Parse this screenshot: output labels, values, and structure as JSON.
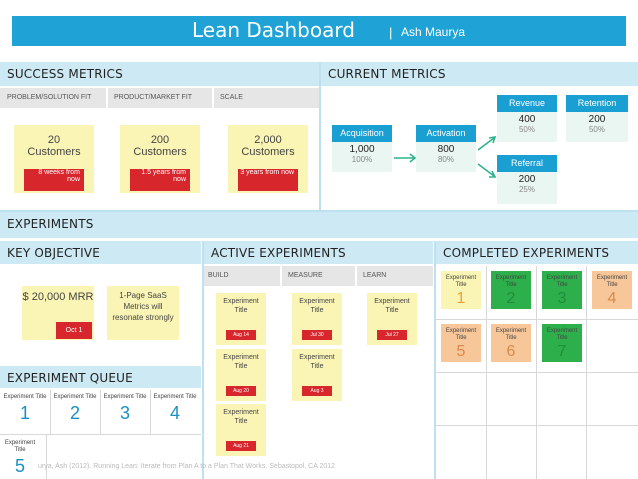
{
  "header": {
    "title": "Lean Dashboard",
    "separator": "|",
    "author": "Ash Maurya"
  },
  "success_metrics": {
    "title": "SUCCESS METRICS",
    "columns": [
      "PROBLEM/SOLUTION FIT",
      "PRODUCT/MARKET FIT",
      "SCALE"
    ],
    "cards": [
      {
        "value": "20",
        "unit": "Customers",
        "timeline": "8 weeks from now"
      },
      {
        "value": "200",
        "unit": "Customers",
        "timeline": "1.5 years from now"
      },
      {
        "value": "2,000",
        "unit": "Customers",
        "timeline": "3 years from now"
      }
    ]
  },
  "current_metrics": {
    "title": "CURRENT METRICS",
    "acquisition": {
      "label": "Acquisition",
      "value": "1,000",
      "pct": "100%"
    },
    "activation": {
      "label": "Activation",
      "value": "800",
      "pct": "80%"
    },
    "revenue": {
      "label": "Revenue",
      "value": "400",
      "pct": "50%"
    },
    "retention": {
      "label": "Retention",
      "value": "200",
      "pct": "50%"
    },
    "referral": {
      "label": "Referral",
      "value": "200",
      "pct": "25%"
    }
  },
  "experiments": {
    "title": "EXPERIMENTS",
    "key_objective": {
      "title": "KEY OBJECTIVE",
      "goal": "$ 20,000 MRR",
      "date": "Oct 1",
      "note": "1-Page SaaS Metrics will resonate strongly"
    },
    "active": {
      "title": "ACTIVE EXPERIMENTS",
      "columns": [
        "BUILD",
        "MEASURE",
        "LEARN"
      ],
      "cards": [
        {
          "title": "Experiment Title",
          "date": "Aug 14"
        },
        {
          "title": "Experiment Title",
          "date": "Jul 30"
        },
        {
          "title": "Experiment Title",
          "date": "Jul 27"
        },
        {
          "title": "Experiment Title",
          "date": "Aug 20"
        },
        {
          "title": "Experiment Title",
          "date": "Aug 3"
        },
        {
          "title": "Experiment Title",
          "date": "Aug 21"
        }
      ]
    },
    "completed": {
      "title": "COMPLETED EXPERIMENTS",
      "cards": [
        {
          "title": "Experiment Title",
          "num": "1",
          "color": "#fbf5b5"
        },
        {
          "title": "Experiment Title",
          "num": "2",
          "color": "#2db04b"
        },
        {
          "title": "Experiment Title",
          "num": "3",
          "color": "#2db04b"
        },
        {
          "title": "Experiment Title",
          "num": "4",
          "color": "#f7c79a"
        },
        {
          "title": "Experiment Title",
          "num": "5",
          "color": "#f7c79a"
        },
        {
          "title": "Experiment Title",
          "num": "6",
          "color": "#f7c79a"
        },
        {
          "title": "Experiment Title",
          "num": "7",
          "color": "#2db04b"
        }
      ]
    },
    "queue": {
      "title": "EXPERIMENT QUEUE",
      "items": [
        {
          "title": "Experiment Title",
          "num": "1"
        },
        {
          "title": "Experiment Title",
          "num": "2"
        },
        {
          "title": "Experiment Title",
          "num": "3"
        },
        {
          "title": "Experiment Title",
          "num": "4"
        },
        {
          "title": "Experiment Title",
          "num": "5"
        }
      ]
    }
  },
  "footer": {
    "citation": "urya, Ash (2012). Running Lean: Iterate from Plan A to a Plan That Works. Sebastopol, CA 2012"
  }
}
